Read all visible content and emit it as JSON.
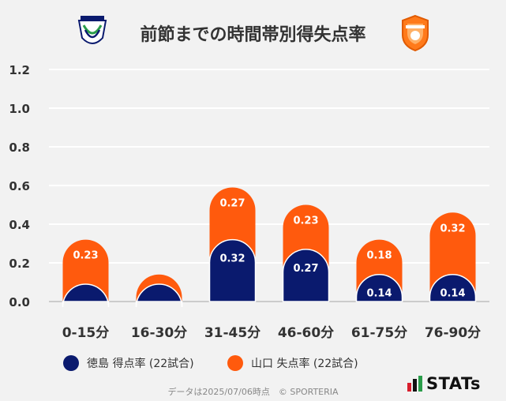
{
  "header": {
    "title": "前節までの時間帯別得失点率",
    "left_logo_text": "TOKUSHIMA VORTIS",
    "right_logo_text": "RENOFA"
  },
  "colors": {
    "home": "#0a1a6e",
    "away": "#ff5a0d",
    "grid": "#ffffff",
    "background": "#f2f2f2"
  },
  "chart_data": {
    "type": "bar",
    "stacked": true,
    "categories": [
      "0-15分",
      "16-30分",
      "31-45分",
      "46-60分",
      "61-75分",
      "76-90分"
    ],
    "series": [
      {
        "name": "徳島 得点率 (22試合)",
        "values": [
          0.09,
          0.09,
          0.32,
          0.27,
          0.14,
          0.14
        ],
        "labels": [
          "",
          "",
          "0.32",
          "0.27",
          "0.14",
          "0.14"
        ]
      },
      {
        "name": "山口 失点率 (22試合)",
        "values": [
          0.23,
          0.05,
          0.27,
          0.23,
          0.18,
          0.32
        ],
        "labels": [
          "0.23",
          "",
          "0.27",
          "0.23",
          "0.18",
          "0.32"
        ]
      }
    ],
    "ylim": [
      0,
      1.2
    ],
    "yticks": [
      "0.0",
      "0.2",
      "0.4",
      "0.6",
      "0.8",
      "1.0",
      "1.2"
    ],
    "grid": true,
    "legend_position": "bottom"
  },
  "legend": {
    "home_label": "徳島 得点率 (22試合)",
    "away_label": "山口 失点率 (22試合)"
  },
  "footer": {
    "note": "データは2025/07/06時点　© SPORTERIA",
    "brand": "STATs"
  }
}
